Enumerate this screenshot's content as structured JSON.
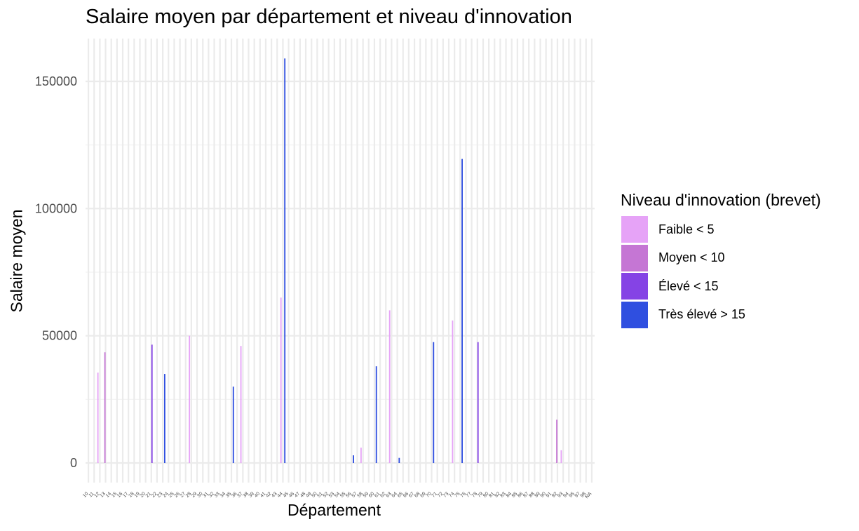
{
  "chart_data": {
    "type": "bar",
    "title": "Salaire moyen par département et niveau d'innovation",
    "xlabel": "Département",
    "ylabel": "Salaire moyen",
    "ylim": [
      -8000,
      162500
    ],
    "yticks": [
      0,
      50000,
      100000,
      150000
    ],
    "ytick_labels": [
      "0",
      "50000",
      "100000",
      "150000"
    ],
    "grid": true,
    "legend_title": "Niveau d'innovation (brevet)",
    "legend_position": "right",
    "categories": [
      "10",
      "11",
      "12",
      "13",
      "14",
      "15",
      "16",
      "17",
      "18",
      "19",
      "20",
      "21",
      "22",
      "23",
      "24",
      "25",
      "26",
      "27",
      "28",
      "29",
      "30",
      "31",
      "32",
      "33",
      "34",
      "35",
      "36",
      "37",
      "38",
      "39",
      "40",
      "41",
      "42",
      "43",
      "44",
      "45",
      "46",
      "47",
      "48",
      "49",
      "50",
      "51",
      "52",
      "53",
      "54",
      "55",
      "56",
      "57",
      "58",
      "59",
      "60",
      "61",
      "62",
      "63",
      "64",
      "65",
      "66",
      "67",
      "68",
      "69",
      "70",
      "71",
      "72",
      "73",
      "74",
      "75",
      "76",
      "77",
      "78",
      "79",
      "80",
      "81",
      "82",
      "83",
      "84",
      "85",
      "86",
      "87",
      "88",
      "89",
      "90",
      "91",
      "92",
      "93",
      "94",
      "95",
      "97",
      "98",
      "NA"
    ],
    "series": [
      {
        "name": "Faible < 5",
        "color": "#E6A3F7",
        "points": [
          {
            "x": "12",
            "y": 35500
          },
          {
            "x": "28",
            "y": 50000
          },
          {
            "x": "37",
            "y": 46000
          },
          {
            "x": "44",
            "y": 65000
          },
          {
            "x": "58",
            "y": 6000
          },
          {
            "x": "63",
            "y": 60000
          },
          {
            "x": "74",
            "y": 56000
          },
          {
            "x": "93",
            "y": 5000
          }
        ]
      },
      {
        "name": "Moyen < 10",
        "color": "#C576D4",
        "points": [
          {
            "x": "13",
            "y": 43500
          },
          {
            "x": "92",
            "y": 17000
          }
        ]
      },
      {
        "name": "Élevé < 15",
        "color": "#8543E5",
        "points": [
          {
            "x": "21",
            "y": 46500
          },
          {
            "x": "78",
            "y": 47500
          }
        ]
      },
      {
        "name": "Très élevé > 15",
        "color": "#2F4FE0",
        "points": [
          {
            "x": "23",
            "y": 35000
          },
          {
            "x": "35",
            "y": 30000
          },
          {
            "x": "44",
            "y": 159000
          },
          {
            "x": "56",
            "y": 3000
          },
          {
            "x": "60",
            "y": 38000
          },
          {
            "x": "64",
            "y": 2000
          },
          {
            "x": "70",
            "y": 47500
          },
          {
            "x": "75",
            "y": 119500
          }
        ]
      }
    ]
  }
}
